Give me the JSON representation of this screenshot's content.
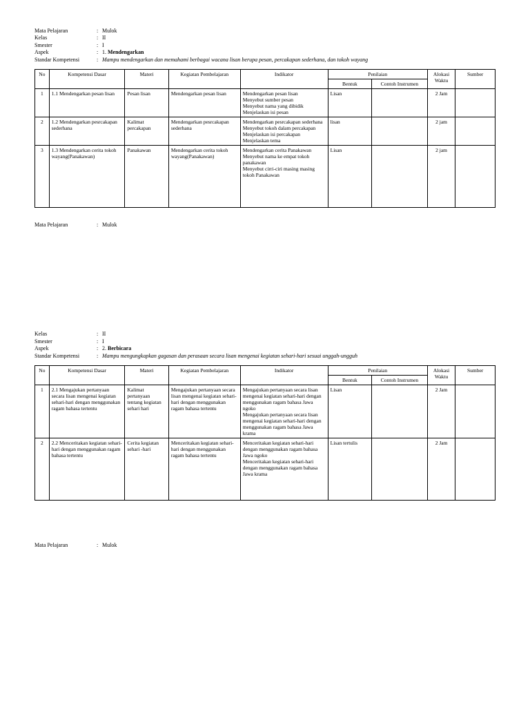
{
  "section1": {
    "headers": {
      "mata_pelajaran_label": "Mata Pelajaran",
      "mata_pelajaran": "Mulok",
      "kelas_label": "Kelas",
      "kelas": "II",
      "smester_label": "Smester",
      "smester": "I",
      "aspek_label": "Aspek",
      "aspek_num": "1.",
      "aspek": "Mendengarkan",
      "sk_label": "Standar Kompetensi",
      "sk": "Mampu mendengarkan dan memahami berbagai wacana lisan berupa pesan, percakapan sederhana, dan tokoh wayang"
    },
    "cols": {
      "no": "No",
      "kd": "Kompetensi Dasar",
      "materi": "Materi",
      "kegiatan": "Kegiatan Pembelajaran",
      "indikator": "Indikator",
      "penilaian": "Penilaian",
      "bentuk": "Bentuk",
      "contoh": "Contoh Instrumen",
      "alokasi": "Alokasi Waktu",
      "sumber": "Sumber"
    },
    "rows": [
      {
        "no": "1",
        "kd": "1.1 Mendengarkan  pesan lisan",
        "materi": "Pesan lisan",
        "kegiatan": "Mendengarkan  pesan lisan",
        "indikator": "Mendengarkan pesan lisan\nMenyebut sumber pesan\nMenyebut nama yang dibidik\nMenjelaskan isi pesan",
        "bentuk": "Lisan",
        "contoh": "",
        "alokasi": "2 Jam",
        "sumber": ""
      },
      {
        "no": "2",
        "kd": "1.2 Mendengarkan pesrcakapan sederhana",
        "materi": "Kalimat percakapan",
        "kegiatan": "Mendengarkan pesrcakapan sederhana",
        "indikator": "Mendengarkan pesrcakapan sederhana\nMenyebut tokoh dalam percakapan\nMenjelaskan isi percakapan\nMenjelaskan tema",
        "bentuk": "lisan",
        "contoh": "",
        "alokasi": "2 jam",
        "sumber": ""
      },
      {
        "no": "3",
        "kd": "1.3 Mendengarkan cerita tokoh wayang(Panakawan)",
        "materi": "Panakawan",
        "kegiatan": "Mendengarkan cerita tokoh wayang(Panakawan)",
        "indikator": "Mendengarkan cerita Panakawan\nMenyebut nama ke empat tokoh panakawan\nMenyebut cirri-ciri masing masing tokoh Panakawan",
        "bentuk": "Lisan",
        "contoh": "",
        "alokasi": "2 jam",
        "sumber": ""
      }
    ]
  },
  "mid": {
    "mata_pelajaran_label": "Mata Pelajaran",
    "mata_pelajaran": "Mulok"
  },
  "section2": {
    "headers": {
      "kelas_label": "Kelas",
      "kelas": "II",
      "smester_label": "Smester",
      "smester": "I",
      "aspek_label": "Aspek",
      "aspek_num": "2.",
      "aspek": "Berbicara",
      "sk_label": "Standar Kompetensi",
      "sk": "Mampu mengungkapkan gagasan dan perasaan secara lisan mengenai kegiatan sehari-hari sesuai unggah-ungguh"
    },
    "rows": [
      {
        "no": "1",
        "kd": "2.1 Mengajukan pertanyaan secara lisan mengenai kegiatan sehari-hari dengan menggunakan ragam bahasa tertentu",
        "materi": "Kalimat pertanyaan tentang kegiatan sehari hari",
        "kegiatan": "Mengajukan pertanyaan secara lisan mengenai kegiatan sehari-hari dengan menggunakan ragam bahasa tertentu",
        "indikator": "Mengajukan pertanyaan secara lisan mengenai kegiatan sehari-hari dengan menggunakan ragam bahasa Jawa ngoko\nMengajukan pertanyaan secara lisan mengenai kegiatan sehari-hari dengan menggunakan ragam bahasa Jawa krama",
        "bentuk": "Lisan",
        "contoh": "",
        "alokasi": "2 Jam",
        "sumber": ""
      },
      {
        "no": "2",
        "kd": "2.2 Menceritakan kegiatan sehari-hari dengan menggunakan ragam bahasa tertentu",
        "materi": "Cerita kegiatan sehari -hari",
        "kegiatan": "Menceritakan kegiatan sehari-hari dengan menggunakan ragam bahasa tertentu",
        "indikator": "Menceritakan kegiatan sehari-hari dengan menggunakan ragam bahasa Jawa ngoko\nMenceritakan kegiatan sehari-hari dengan menggunakan ragam bahasa Jawa krama",
        "bentuk": "Lisan tertulis",
        "contoh": "",
        "alokasi": "2 Jam",
        "sumber": ""
      }
    ]
  },
  "footer": {
    "mata_pelajaran_label": "Mata Pelajaran",
    "mata_pelajaran": "Mulok"
  }
}
